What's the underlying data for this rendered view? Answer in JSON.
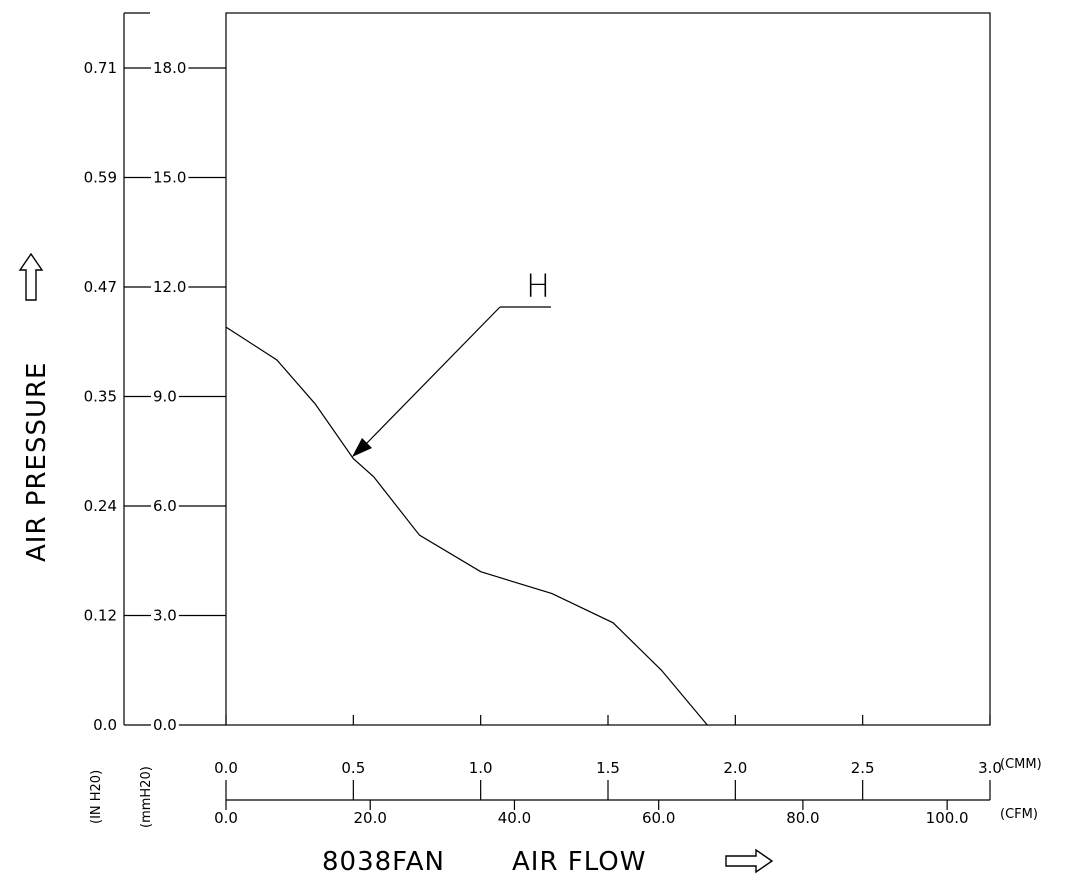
{
  "chart_data": {
    "type": "line",
    "title": "",
    "xlabel": "AIR FLOW",
    "xlabel_prefix": "8038FAN",
    "ylabel": "AIR PRESSURE",
    "x_primary": {
      "unit": "(CMM)",
      "ticks": [
        "0.0",
        "0.5",
        "1.0",
        "1.5",
        "2.0",
        "2.5",
        "3.0"
      ],
      "range": [
        0,
        3.0
      ]
    },
    "x_secondary": {
      "unit": "(CFM)",
      "ticks": [
        "0.0",
        "20.0",
        "40.0",
        "60.0",
        "80.0",
        "100.0"
      ],
      "tick_values": [
        0,
        20,
        40,
        60,
        80,
        100
      ]
    },
    "y_primary": {
      "unit": "(mmH20)",
      "ticks": [
        "0.0",
        "3.0",
        "6.0",
        "9.0",
        "12.0",
        "15.0",
        "18.0"
      ],
      "range": [
        0,
        19.5
      ]
    },
    "y_secondary": {
      "unit": "(IN H20)",
      "ticks": [
        "0.0",
        "0.12",
        "0.24",
        "0.35",
        "0.47",
        "0.59",
        "0.71"
      ]
    },
    "series": [
      {
        "name": "H",
        "x": [
          0.0,
          0.2,
          0.35,
          0.5,
          0.58,
          0.76,
          1.0,
          1.28,
          1.52,
          1.71,
          1.89
        ],
        "y": [
          10.9,
          10.0,
          8.8,
          7.3,
          6.8,
          5.2,
          4.2,
          3.6,
          2.8,
          1.5,
          0.0
        ]
      }
    ],
    "annotation": {
      "label": "H",
      "points_to": {
        "x": 0.5,
        "y": 7.35
      }
    },
    "grid": false,
    "legend": "none"
  }
}
